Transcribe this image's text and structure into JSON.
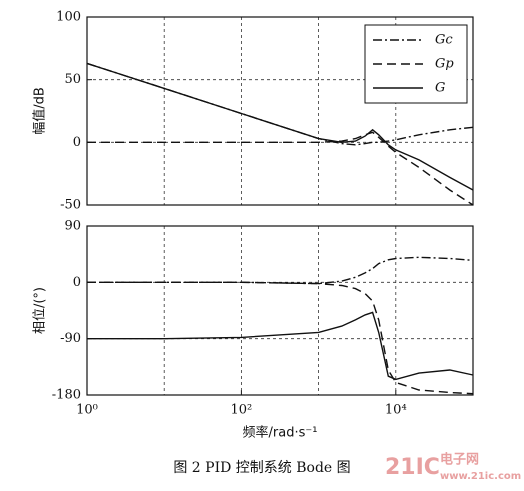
{
  "chart_data": [
    {
      "type": "line",
      "xlog": true,
      "xlim": [
        1,
        100000
      ],
      "xgrid": [
        10,
        100,
        1000,
        10000
      ],
      "ylim": [
        -50,
        100
      ],
      "yticks": [
        100,
        50,
        0,
        -50
      ],
      "ylabel": "幅值/dB",
      "grid": true,
      "legend": "upper right",
      "x": [
        1,
        10,
        100,
        1000,
        2000,
        3000,
        4000,
        5000,
        6000,
        8000,
        10000,
        20000,
        50000,
        100000
      ],
      "series": [
        {
          "name": "Gc",
          "color": "#111111",
          "dash": "dashdot",
          "values": [
            63,
            43,
            23,
            3,
            -1,
            -2,
            -1,
            0,
            0,
            1,
            2,
            6,
            10,
            12
          ]
        },
        {
          "name": "Gp",
          "color": "#111111",
          "dash": "dashed",
          "values": [
            0,
            0,
            0,
            0,
            1,
            3,
            6,
            8,
            4,
            -3,
            -8,
            -20,
            -38,
            -50
          ]
        },
        {
          "name": "G",
          "color": "#111111",
          "dash": "solid",
          "values": [
            63,
            43,
            23,
            3,
            0,
            1,
            5,
            10,
            6,
            -2,
            -6,
            -14,
            -28,
            -38
          ]
        }
      ]
    },
    {
      "type": "line",
      "xlog": true,
      "xlim": [
        1,
        100000
      ],
      "xgrid": [
        10,
        1000
      ],
      "xticks": [
        {
          "value": 1,
          "label": "10⁰"
        },
        {
          "value": 100,
          "label": "10²"
        },
        {
          "value": 10000,
          "label": "10⁴"
        }
      ],
      "xlabel": "频率/rad·s⁻¹",
      "ylim": [
        -180,
        90
      ],
      "yticks": [
        90,
        0,
        -90,
        -180
      ],
      "ylabel": "相位/(°)",
      "grid": true,
      "x": [
        1,
        10,
        100,
        1000,
        2000,
        3000,
        4000,
        5000,
        6000,
        8000,
        10000,
        20000,
        50000,
        100000
      ],
      "series": [
        {
          "name": "Gc",
          "color": "#111111",
          "dash": "dashdot",
          "values": [
            0,
            0,
            0,
            -2,
            2,
            8,
            15,
            22,
            30,
            36,
            38,
            40,
            38,
            35
          ]
        },
        {
          "name": "Gp",
          "color": "#111111",
          "dash": "dashed",
          "values": [
            0,
            0,
            0,
            -2,
            -5,
            -10,
            -18,
            -30,
            -60,
            -140,
            -160,
            -172,
            -176,
            -178
          ]
        },
        {
          "name": "G",
          "color": "#111111",
          "dash": "solid",
          "values": [
            -90,
            -90,
            -88,
            -80,
            -70,
            -60,
            -52,
            -48,
            -80,
            -150,
            -155,
            -145,
            -140,
            -148
          ]
        }
      ]
    }
  ],
  "caption": "图 2   PID 控制系统 Bode 图",
  "watermark": [
    "21IC",
    "电子网",
    "www.21ic.com"
  ]
}
